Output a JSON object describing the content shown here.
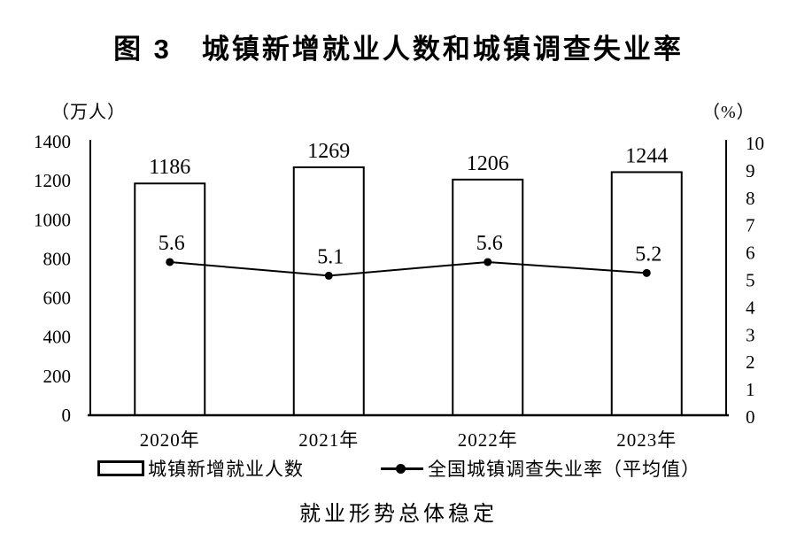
{
  "title": "图 3　城镇新增就业人数和城镇调查失业率",
  "caption": "就业形势总体稳定",
  "colors": {
    "ink": "#000000",
    "background": "#ffffff"
  },
  "chart_data": {
    "type": "bar+line",
    "title": "图 3　城镇新增就业人数和城镇调查失业率",
    "subtitle": "就业形势总体稳定",
    "categories": [
      "2020年",
      "2021年",
      "2022年",
      "2023年"
    ],
    "series": [
      {
        "name": "城镇新增就业人数",
        "type": "bar",
        "axis": "left",
        "values": [
          1186,
          1269,
          1206,
          1244
        ]
      },
      {
        "name": "全国城镇调查失业率（平均值）",
        "type": "line",
        "axis": "right",
        "values": [
          5.6,
          5.1,
          5.6,
          5.2
        ]
      }
    ],
    "left_axis": {
      "unit": "（万人）",
      "min": 0,
      "max": 1400,
      "step": 200,
      "tick_labels": [
        "0",
        "200",
        "400",
        "600",
        "800",
        "1000",
        "1200",
        "1400"
      ]
    },
    "right_axis": {
      "unit": "（%）",
      "min": 0,
      "max": 10,
      "step": 1,
      "tick_labels": [
        "0",
        "1",
        "2",
        "3",
        "4",
        "5",
        "6",
        "7",
        "8",
        "9",
        "10"
      ]
    },
    "grid": false,
    "legend_position": "bottom",
    "bar_value_labels": [
      "1186",
      "1269",
      "1206",
      "1244"
    ],
    "line_value_labels": [
      "5.6",
      "5.1",
      "5.6",
      "5.2"
    ]
  }
}
